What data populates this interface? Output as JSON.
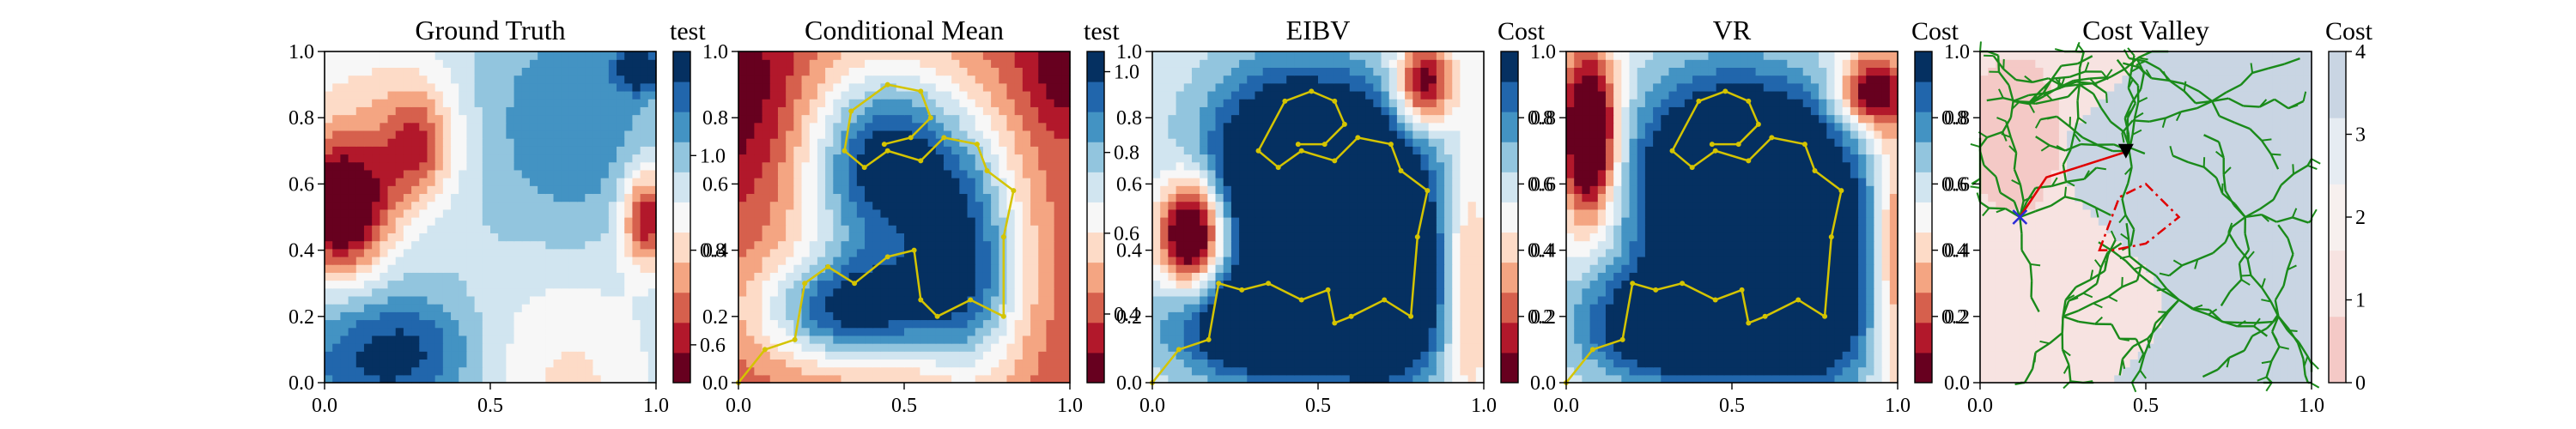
{
  "figure": {
    "panels": [
      {
        "title": "Ground Truth",
        "colorbar_label": "test"
      },
      {
        "title": "Conditional Mean",
        "colorbar_label": "test"
      },
      {
        "title": "EIBV",
        "colorbar_label": "Cost"
      },
      {
        "title": "VR",
        "colorbar_label": "Cost"
      },
      {
        "title": "Cost Valley",
        "colorbar_label": "Cost"
      }
    ]
  },
  "chart_data": [
    {
      "type": "heatmap",
      "title": "Ground Truth",
      "colormap": "RdBu",
      "colorbar_label": "test",
      "colorbar_ticks": [
        "0.6",
        "0.8",
        "1.0"
      ],
      "colorbar_range": [
        0.52,
        1.22
      ],
      "xlim": [
        0.0,
        1.0
      ],
      "ylim": [
        0.0,
        1.0
      ],
      "x_ticks": [
        "0.0",
        "0.5",
        "1.0"
      ],
      "y_ticks": [
        "0.0",
        "0.2",
        "0.4",
        "0.6",
        "0.8",
        "1.0"
      ]
    },
    {
      "type": "heatmap",
      "title": "Conditional Mean",
      "colormap": "RdBu",
      "colorbar_label": "test",
      "colorbar_ticks": [
        "0.4",
        "0.6",
        "0.8",
        "1.0"
      ],
      "colorbar_range": [
        0.23,
        1.05
      ],
      "xlim": [
        0.0,
        1.0
      ],
      "ylim": [
        0.0,
        1.0
      ],
      "x_ticks": [
        "0.0",
        "0.5",
        "1.0"
      ],
      "y_ticks": [
        "0.0",
        "0.2",
        "0.4",
        "0.6",
        "0.8",
        "1.0"
      ],
      "path": {
        "color": "#d4c400"
      }
    },
    {
      "type": "heatmap",
      "title": "EIBV",
      "colormap": "RdBu",
      "colorbar_label": "Cost",
      "colorbar_ticks": [
        "0.2",
        "0.4",
        "0.6",
        "0.8"
      ],
      "colorbar_range": [
        0.0,
        1.0
      ],
      "xlim": [
        0.0,
        1.0
      ],
      "ylim": [
        0.0,
        1.0
      ],
      "x_ticks": [
        "0.0",
        "0.5",
        "1.0"
      ],
      "y_ticks": [
        "0.0",
        "0.2",
        "0.4",
        "0.6",
        "0.8",
        "1.0"
      ],
      "path": {
        "color": "#d4c400"
      }
    },
    {
      "type": "heatmap",
      "title": "VR",
      "colormap": "RdBu",
      "colorbar_label": "Cost",
      "colorbar_ticks": [
        "0.2",
        "0.4",
        "0.6",
        "0.8"
      ],
      "colorbar_range": [
        0.0,
        1.0
      ],
      "xlim": [
        0.0,
        1.0
      ],
      "ylim": [
        0.0,
        1.0
      ],
      "x_ticks": [
        "0.0",
        "0.5",
        "1.0"
      ],
      "y_ticks": [
        "0.0",
        "0.2",
        "0.4",
        "0.6",
        "0.8",
        "1.0"
      ],
      "path": {
        "color": "#d4c400"
      }
    },
    {
      "type": "heatmap",
      "title": "Cost Valley",
      "colormap": "RdBu-pale",
      "colorbar_label": "Cost",
      "colorbar_ticks": [
        "0",
        "1",
        "2",
        "3",
        "4"
      ],
      "colorbar_range": [
        0,
        4
      ],
      "xlim": [
        0.0,
        1.0
      ],
      "ylim": [
        0.0,
        1.0
      ],
      "x_ticks": [
        "0.0",
        "0.5",
        "1.0"
      ],
      "y_ticks": [
        "0.0",
        "0.2",
        "0.4",
        "0.6",
        "0.8",
        "1.0"
      ],
      "markers": {
        "start": {
          "x": 0.12,
          "y": 0.5,
          "symbol": "x",
          "color": "#2b2bd6"
        },
        "current": {
          "x": 0.44,
          "y": 0.7,
          "symbol": "triangle-down",
          "color": "#000000"
        }
      },
      "tree_color": "#1a8a1a",
      "polygon_color": "#e00000"
    }
  ]
}
